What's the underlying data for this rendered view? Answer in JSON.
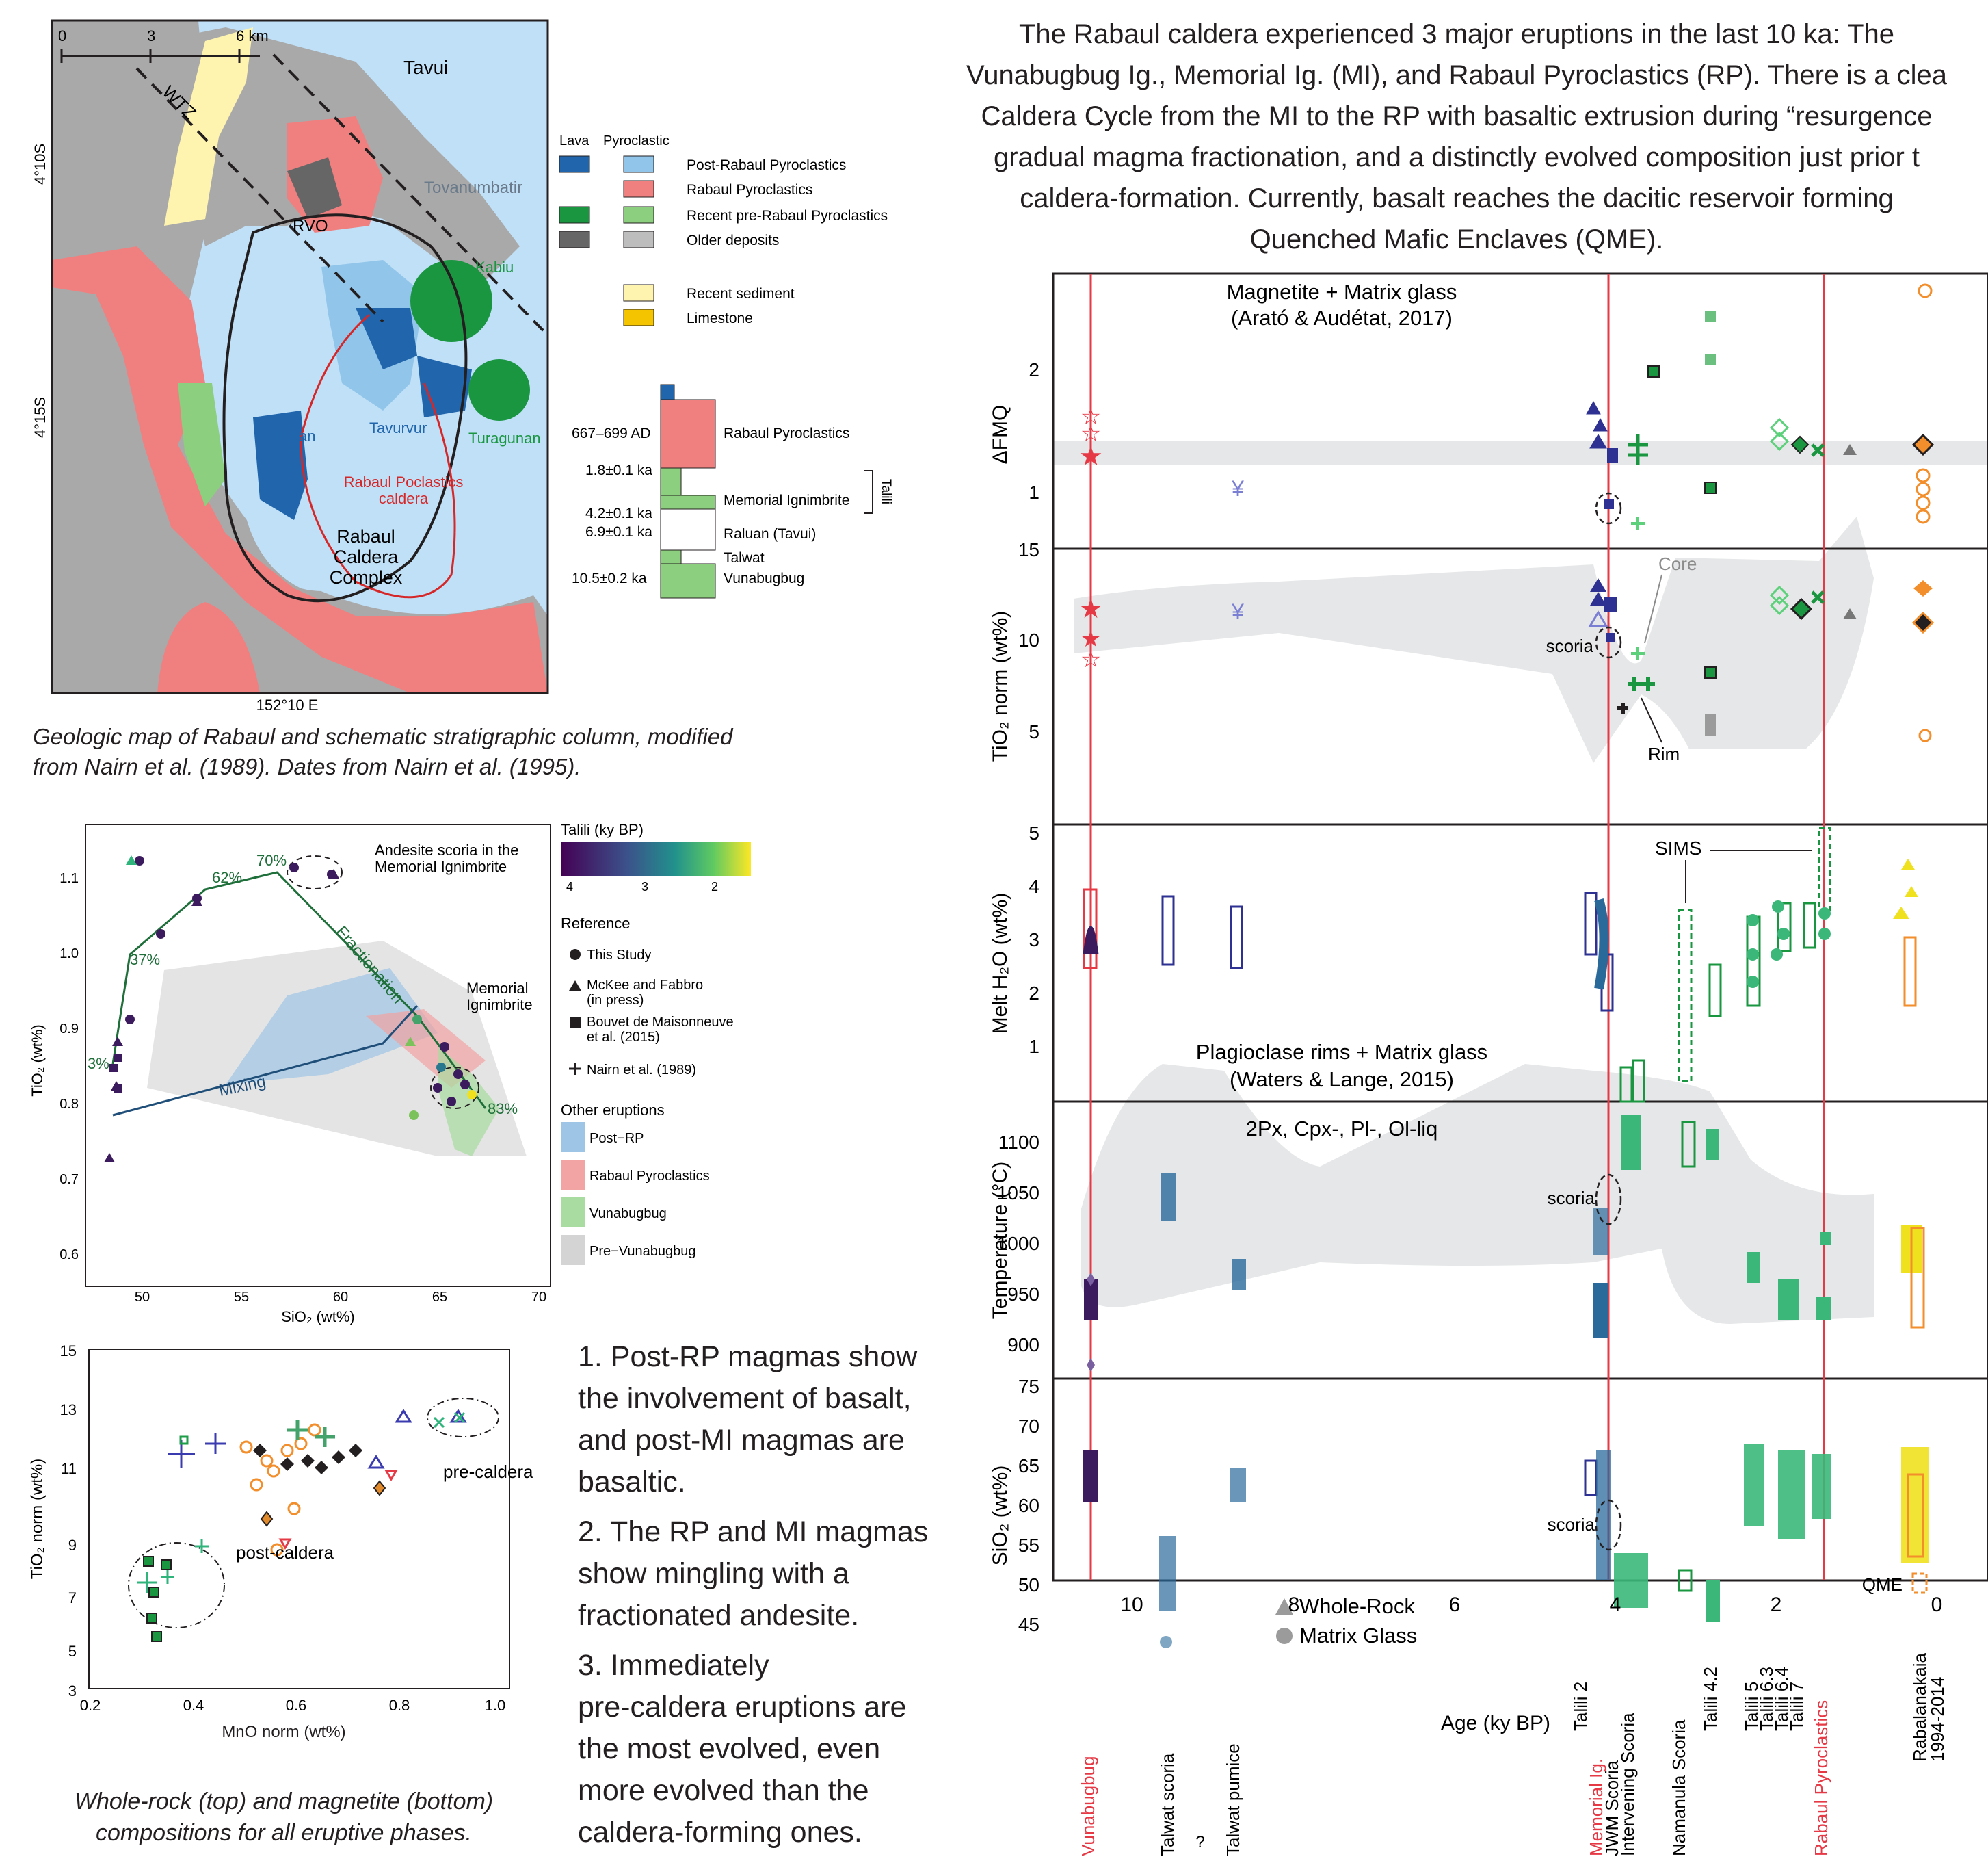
{
  "intro_text": [
    "The Rabaul caldera experienced 3 major eruptions in the last 10 ka: The",
    "Vunabugbug Ig., Memorial Ig. (MI), and Rabaul Pyroclastics (RP). There is a clea",
    "Caldera Cycle from the MI to the RP with basaltic extrusion during “resurgence",
    "gradual magma fractionation, and a distinctly evolved composition just prior t",
    "caldera-formation. Currently, basalt reaches the dacitic reservoir forming",
    "Quenched Mafic Enclaves (QME)."
  ],
  "map": {
    "scale_ticks": [
      "0",
      "3",
      "6 km"
    ],
    "lat_labels": [
      "4°10S",
      "4°15S"
    ],
    "lon_label": "152°10 E",
    "place_labels": {
      "tavui": "Tavui",
      "wtz": "WTZ",
      "tovanumbatir": "Tovanumbatir",
      "rvo": "RVO",
      "kabiu": "Kabiu",
      "vulcan": "Vulcan",
      "tavurvur": "Tavurvur",
      "turagunan": "Turagunan",
      "caldera": [
        "Rabaul Poclastics",
        "caldera"
      ],
      "complex": [
        "Rabaul",
        "Caldera",
        "Complex"
      ]
    },
    "legend_headers": [
      "Lava",
      "Pyroclastic"
    ],
    "legend": [
      {
        "label": "Post-Rabaul Pyroclastics",
        "lava": "#2166ac",
        "pyro": "#92c5ea"
      },
      {
        "label": "Rabaul Pyroclastics",
        "lava": null,
        "pyro": "#f08080"
      },
      {
        "label": "Recent pre-Rabaul Pyroclastics",
        "lava": "#1a9641",
        "pyro": "#8ccf7e"
      },
      {
        "label": "Older deposits",
        "lava": "#666666",
        "pyro": "#bdbdbd"
      },
      {
        "label": "Recent sediment",
        "lava": null,
        "pyro": "#fff3b0"
      },
      {
        "label": "Limestone",
        "lava": null,
        "pyro": "#f5c400"
      }
    ],
    "strat_dates": [
      "667–699 AD",
      "1.8±0.1 ka",
      "4.2±0.1 ka",
      "6.9±0.1 ka",
      "10.5±0.2 ka"
    ],
    "strat_units": [
      "Rabaul Pyroclastics",
      "Memorial Ignimbrite",
      "Raluan (Tavui)",
      "Talwat",
      "Vunabugbug"
    ],
    "strat_bracket": "Talili",
    "caption": [
      "Geologic map of Rabaul and schematic stratigraphic column, modified",
      "from Nairn et al. (1989). Dates from Nairn et al. (1995)."
    ]
  },
  "sio2_tio2": {
    "ylabel": "TiO₂ (wt%)",
    "xlabel": "SiO₂ (wt%)",
    "xticks": [
      "50",
      "55",
      "60",
      "65",
      "70"
    ],
    "yticks": [
      "0.6",
      "0.7",
      "0.8",
      "0.9",
      "1.0",
      "1.1"
    ],
    "pct": [
      "3%",
      "37%",
      "62%",
      "70%",
      "83%"
    ],
    "ann_scoria": [
      "Andesite scoria in the",
      "Memorial Ignimbrite"
    ],
    "ann_mi": [
      "Memorial",
      "Ignimbrite"
    ],
    "fractionation": "Fractionation",
    "mixing": "Mixing",
    "colorbar_title": "Talili (ky BP)",
    "colorbar_ticks": [
      "4",
      "3",
      "2"
    ],
    "reference_title": "Reference",
    "references": [
      "This Study",
      "McKee and Fabbro",
      "(in press)",
      "Bouvet de Maisonneuve",
      "et al. (2015)",
      "Nairn et al. (1989)"
    ],
    "other_title": "Other eruptions",
    "others": [
      {
        "label": "Post−RP",
        "color": "#9ec5e6"
      },
      {
        "label": "Rabaul Pyroclastics",
        "color": "#f2a3a3"
      },
      {
        "label": "Vunabugbug",
        "color": "#a8dca0"
      },
      {
        "label": "Pre−Vunabugbug",
        "color": "#d4d4d4"
      }
    ]
  },
  "mno_tio2": {
    "ylabel": "TiO₂ norm (wt%)",
    "xlabel": "MnO norm (wt%)",
    "xticks": [
      "0.2",
      "0.4",
      "0.6",
      "0.8",
      "1.0"
    ],
    "yticks": [
      "3",
      "5",
      "7",
      "9",
      "11",
      "13",
      "15"
    ],
    "post_caldera": "post-caldera",
    "pre_caldera": "pre-caldera",
    "caption": [
      "Whole-rock (top) and magnetite (bottom)",
      "compositions for all eruptive phases."
    ]
  },
  "points": [
    [
      "1. Post-RP magmas show",
      "the involvement of basalt,",
      "and post-MI magmas are",
      "basaltic."
    ],
    [
      "2. The RP and MI magmas",
      "show mingling with a",
      "fractionated andesite."
    ],
    [
      "3. Immediately",
      "pre-caldera eruptions are",
      "the most evolved, even",
      "more evolved than the",
      "caldera-forming ones."
    ]
  ],
  "main_chart": {
    "panels": [
      {
        "ylabel": "ΔFMQ",
        "yticks": [
          "1",
          "2"
        ],
        "title": [
          "Magnetite + Matrix glass",
          "(Arató & Audétat, 2017)"
        ]
      },
      {
        "ylabel": "TiO₂ norm (wt%)",
        "yticks": [
          "5",
          "10",
          "15"
        ],
        "scoria": "scoria",
        "core": "Core",
        "rim": "Rim"
      },
      {
        "ylabel": "Melt H₂O (wt%)",
        "yticks": [
          "1",
          "2",
          "3",
          "4",
          "5"
        ],
        "sims": "SIMS",
        "title": [
          "Plagioclase rims + Matrix glass",
          "(Waters & Lange, 2015)"
        ]
      },
      {
        "ylabel": "Temperature (°C)",
        "yticks": [
          "900",
          "950",
          "1000",
          "1050",
          "1100"
        ],
        "title": [
          "2Px, Cpx-, Pl-, Ol-liq"
        ],
        "scoria": "scoria"
      },
      {
        "ylabel": "SiO₂ (wt%)",
        "yticks": [
          "45",
          "50",
          "55",
          "60",
          "65",
          "70",
          "75"
        ],
        "scoria": "scoria",
        "qme": "QME",
        "legend": [
          "Whole-Rock",
          "Matrix Glass"
        ]
      }
    ],
    "xlabel": "Age (ky BP)",
    "xticks": [
      "10",
      "8",
      "6",
      "4",
      "2",
      "0"
    ],
    "eruptions": [
      {
        "label": "Vunabugbug",
        "red": true
      },
      {
        "label": "Talwat scoria",
        "red": false
      },
      {
        "label": "Talwat pumice",
        "red": false
      },
      {
        "label": "Talili 2",
        "red": false
      },
      {
        "label": "Memorial Ig.",
        "red": true
      },
      {
        "label": "JWM Scoria",
        "red": false
      },
      {
        "label": "Intervening Scoria",
        "red": false
      },
      {
        "label": "Namanula Scoria",
        "red": false
      },
      {
        "label": "Talili 4.2",
        "red": false
      },
      {
        "label": "Talili 5",
        "red": false
      },
      {
        "label": "Talili 6.3",
        "red": false
      },
      {
        "label": "Talili 6.4",
        "red": false
      },
      {
        "label": "Talili 7",
        "red": false
      },
      {
        "label": "Rabaul Pyroclastics",
        "red": true
      },
      {
        "label": "Rabalanakaia",
        "red": false
      },
      {
        "label": "1994-2014",
        "red": false
      }
    ],
    "question": "?"
  }
}
